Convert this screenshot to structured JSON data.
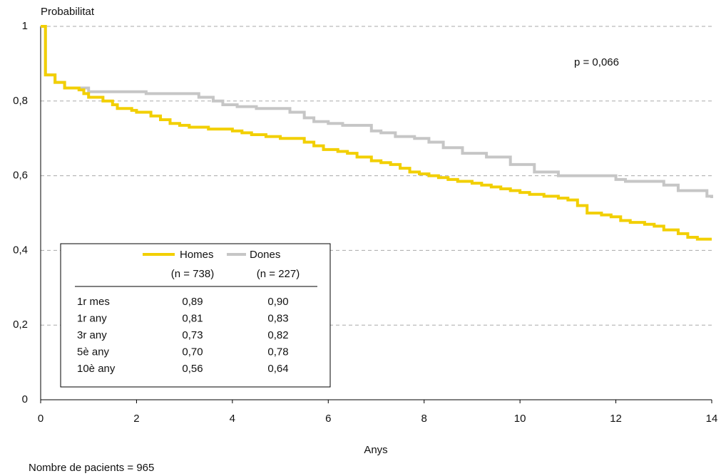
{
  "chart_data": {
    "type": "line",
    "step": true,
    "y_axis_title": "Probabilitat",
    "x_axis_title": "Anys",
    "annotation": "p = 0,066",
    "footnote": "Nombre de pacients = 965",
    "xlim": [
      0,
      14
    ],
    "xticks": [
      0,
      2,
      4,
      6,
      8,
      10,
      12,
      14
    ],
    "ylim": [
      0,
      1
    ],
    "yticks": [
      0,
      {
        "value": 0.2,
        "label": "0,2"
      },
      {
        "value": 0.4,
        "label": "0,4"
      },
      {
        "value": 0.6,
        "label": "0,6"
      },
      {
        "value": 0.8,
        "label": "0,8"
      },
      1
    ],
    "grid": true,
    "series": [
      {
        "name": "Homes",
        "color": "#f2cf00",
        "x": [
          0,
          0.1,
          0.3,
          0.5,
          0.8,
          0.9,
          1.0,
          1.3,
          1.5,
          1.6,
          1.9,
          2.0,
          2.3,
          2.5,
          2.7,
          2.9,
          3.1,
          3.5,
          4.0,
          4.2,
          4.4,
          4.7,
          5.0,
          5.5,
          5.7,
          5.9,
          6.2,
          6.4,
          6.6,
          6.9,
          7.1,
          7.3,
          7.5,
          7.7,
          7.9,
          8.1,
          8.3,
          8.5,
          8.7,
          9.0,
          9.2,
          9.4,
          9.6,
          9.8,
          10.0,
          10.2,
          10.5,
          10.8,
          11.0,
          11.2,
          11.4,
          11.7,
          11.9,
          12.1,
          12.3,
          12.6,
          12.8,
          13.0,
          13.3,
          13.5,
          13.7,
          14
        ],
        "values": [
          1,
          0.87,
          0.85,
          0.835,
          0.83,
          0.82,
          0.81,
          0.8,
          0.79,
          0.78,
          0.775,
          0.77,
          0.76,
          0.75,
          0.74,
          0.735,
          0.73,
          0.725,
          0.72,
          0.715,
          0.71,
          0.705,
          0.7,
          0.69,
          0.68,
          0.67,
          0.665,
          0.66,
          0.65,
          0.64,
          0.635,
          0.63,
          0.62,
          0.61,
          0.605,
          0.6,
          0.595,
          0.59,
          0.585,
          0.58,
          0.575,
          0.57,
          0.565,
          0.56,
          0.555,
          0.55,
          0.545,
          0.54,
          0.535,
          0.52,
          0.5,
          0.495,
          0.49,
          0.48,
          0.475,
          0.47,
          0.465,
          0.455,
          0.445,
          0.435,
          0.43,
          0.43
        ]
      },
      {
        "name": "Dones",
        "color": "#c6c6c6",
        "x": [
          0,
          0.1,
          0.3,
          0.5,
          1.0,
          2.2,
          3.3,
          3.6,
          3.8,
          4.1,
          4.5,
          5.2,
          5.5,
          5.7,
          6.0,
          6.3,
          6.9,
          7.1,
          7.4,
          7.8,
          8.1,
          8.4,
          8.8,
          9.3,
          9.8,
          10.3,
          10.8,
          12.0,
          12.2,
          13.0,
          13.3,
          13.9,
          14
        ],
        "values": [
          1,
          0.87,
          0.85,
          0.835,
          0.825,
          0.82,
          0.81,
          0.8,
          0.79,
          0.785,
          0.78,
          0.77,
          0.755,
          0.745,
          0.74,
          0.735,
          0.72,
          0.715,
          0.705,
          0.7,
          0.69,
          0.675,
          0.66,
          0.65,
          0.63,
          0.61,
          0.6,
          0.59,
          0.585,
          0.575,
          0.56,
          0.545,
          0.54
        ]
      }
    ],
    "legend_table": {
      "headers": [
        "(n = 738)",
        "(n = 227)"
      ],
      "rows": [
        [
          "1r mes",
          "0,89",
          "0,90"
        ],
        [
          "1r any",
          "0,81",
          "0,83"
        ],
        [
          "3r any",
          "0,73",
          "0,82"
        ],
        [
          "5è any",
          "0,70",
          "0,78"
        ],
        [
          "10è any",
          "0,56",
          "0,64"
        ]
      ]
    }
  }
}
